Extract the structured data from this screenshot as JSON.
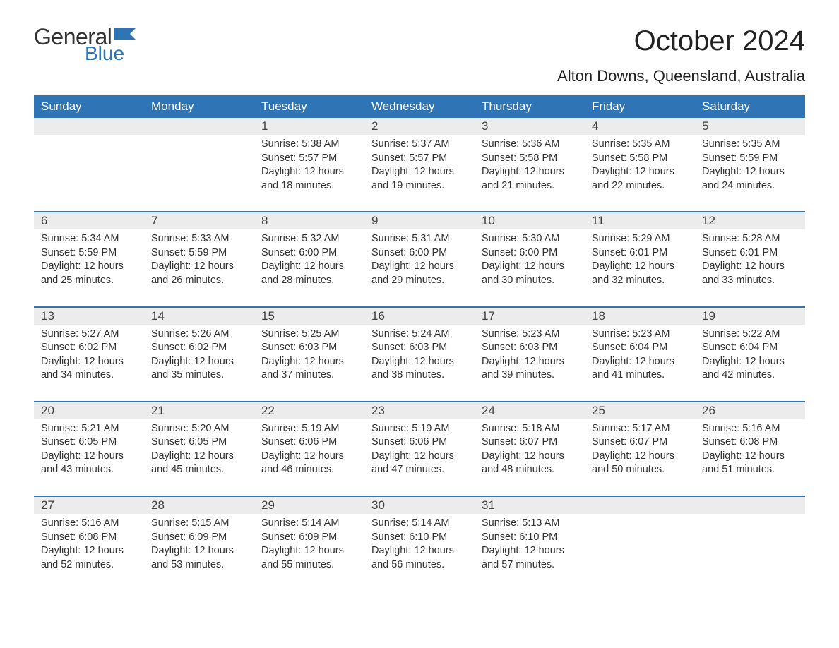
{
  "logo": {
    "word1": "General",
    "word2": "Blue",
    "accent_color": "#2f74b5"
  },
  "title": "October 2024",
  "location": "Alton Downs, Queensland, Australia",
  "colors": {
    "header_bg": "#2f74b5",
    "header_text": "#ffffff",
    "daynum_bg": "#ececec",
    "text": "#333333",
    "week_divider": "#2f74b5",
    "page_bg": "#ffffff"
  },
  "typography": {
    "title_fontsize": 40,
    "location_fontsize": 22,
    "weekday_fontsize": 17,
    "daynum_fontsize": 17,
    "body_fontsize": 14.5
  },
  "weekdays": [
    "Sunday",
    "Monday",
    "Tuesday",
    "Wednesday",
    "Thursday",
    "Friday",
    "Saturday"
  ],
  "weeks": [
    [
      null,
      null,
      {
        "n": "1",
        "sunrise": "Sunrise: 5:38 AM",
        "sunset": "Sunset: 5:57 PM",
        "d1": "Daylight: 12 hours",
        "d2": "and 18 minutes."
      },
      {
        "n": "2",
        "sunrise": "Sunrise: 5:37 AM",
        "sunset": "Sunset: 5:57 PM",
        "d1": "Daylight: 12 hours",
        "d2": "and 19 minutes."
      },
      {
        "n": "3",
        "sunrise": "Sunrise: 5:36 AM",
        "sunset": "Sunset: 5:58 PM",
        "d1": "Daylight: 12 hours",
        "d2": "and 21 minutes."
      },
      {
        "n": "4",
        "sunrise": "Sunrise: 5:35 AM",
        "sunset": "Sunset: 5:58 PM",
        "d1": "Daylight: 12 hours",
        "d2": "and 22 minutes."
      },
      {
        "n": "5",
        "sunrise": "Sunrise: 5:35 AM",
        "sunset": "Sunset: 5:59 PM",
        "d1": "Daylight: 12 hours",
        "d2": "and 24 minutes."
      }
    ],
    [
      {
        "n": "6",
        "sunrise": "Sunrise: 5:34 AM",
        "sunset": "Sunset: 5:59 PM",
        "d1": "Daylight: 12 hours",
        "d2": "and 25 minutes."
      },
      {
        "n": "7",
        "sunrise": "Sunrise: 5:33 AM",
        "sunset": "Sunset: 5:59 PM",
        "d1": "Daylight: 12 hours",
        "d2": "and 26 minutes."
      },
      {
        "n": "8",
        "sunrise": "Sunrise: 5:32 AM",
        "sunset": "Sunset: 6:00 PM",
        "d1": "Daylight: 12 hours",
        "d2": "and 28 minutes."
      },
      {
        "n": "9",
        "sunrise": "Sunrise: 5:31 AM",
        "sunset": "Sunset: 6:00 PM",
        "d1": "Daylight: 12 hours",
        "d2": "and 29 minutes."
      },
      {
        "n": "10",
        "sunrise": "Sunrise: 5:30 AM",
        "sunset": "Sunset: 6:00 PM",
        "d1": "Daylight: 12 hours",
        "d2": "and 30 minutes."
      },
      {
        "n": "11",
        "sunrise": "Sunrise: 5:29 AM",
        "sunset": "Sunset: 6:01 PM",
        "d1": "Daylight: 12 hours",
        "d2": "and 32 minutes."
      },
      {
        "n": "12",
        "sunrise": "Sunrise: 5:28 AM",
        "sunset": "Sunset: 6:01 PM",
        "d1": "Daylight: 12 hours",
        "d2": "and 33 minutes."
      }
    ],
    [
      {
        "n": "13",
        "sunrise": "Sunrise: 5:27 AM",
        "sunset": "Sunset: 6:02 PM",
        "d1": "Daylight: 12 hours",
        "d2": "and 34 minutes."
      },
      {
        "n": "14",
        "sunrise": "Sunrise: 5:26 AM",
        "sunset": "Sunset: 6:02 PM",
        "d1": "Daylight: 12 hours",
        "d2": "and 35 minutes."
      },
      {
        "n": "15",
        "sunrise": "Sunrise: 5:25 AM",
        "sunset": "Sunset: 6:03 PM",
        "d1": "Daylight: 12 hours",
        "d2": "and 37 minutes."
      },
      {
        "n": "16",
        "sunrise": "Sunrise: 5:24 AM",
        "sunset": "Sunset: 6:03 PM",
        "d1": "Daylight: 12 hours",
        "d2": "and 38 minutes."
      },
      {
        "n": "17",
        "sunrise": "Sunrise: 5:23 AM",
        "sunset": "Sunset: 6:03 PM",
        "d1": "Daylight: 12 hours",
        "d2": "and 39 minutes."
      },
      {
        "n": "18",
        "sunrise": "Sunrise: 5:23 AM",
        "sunset": "Sunset: 6:04 PM",
        "d1": "Daylight: 12 hours",
        "d2": "and 41 minutes."
      },
      {
        "n": "19",
        "sunrise": "Sunrise: 5:22 AM",
        "sunset": "Sunset: 6:04 PM",
        "d1": "Daylight: 12 hours",
        "d2": "and 42 minutes."
      }
    ],
    [
      {
        "n": "20",
        "sunrise": "Sunrise: 5:21 AM",
        "sunset": "Sunset: 6:05 PM",
        "d1": "Daylight: 12 hours",
        "d2": "and 43 minutes."
      },
      {
        "n": "21",
        "sunrise": "Sunrise: 5:20 AM",
        "sunset": "Sunset: 6:05 PM",
        "d1": "Daylight: 12 hours",
        "d2": "and 45 minutes."
      },
      {
        "n": "22",
        "sunrise": "Sunrise: 5:19 AM",
        "sunset": "Sunset: 6:06 PM",
        "d1": "Daylight: 12 hours",
        "d2": "and 46 minutes."
      },
      {
        "n": "23",
        "sunrise": "Sunrise: 5:19 AM",
        "sunset": "Sunset: 6:06 PM",
        "d1": "Daylight: 12 hours",
        "d2": "and 47 minutes."
      },
      {
        "n": "24",
        "sunrise": "Sunrise: 5:18 AM",
        "sunset": "Sunset: 6:07 PM",
        "d1": "Daylight: 12 hours",
        "d2": "and 48 minutes."
      },
      {
        "n": "25",
        "sunrise": "Sunrise: 5:17 AM",
        "sunset": "Sunset: 6:07 PM",
        "d1": "Daylight: 12 hours",
        "d2": "and 50 minutes."
      },
      {
        "n": "26",
        "sunrise": "Sunrise: 5:16 AM",
        "sunset": "Sunset: 6:08 PM",
        "d1": "Daylight: 12 hours",
        "d2": "and 51 minutes."
      }
    ],
    [
      {
        "n": "27",
        "sunrise": "Sunrise: 5:16 AM",
        "sunset": "Sunset: 6:08 PM",
        "d1": "Daylight: 12 hours",
        "d2": "and 52 minutes."
      },
      {
        "n": "28",
        "sunrise": "Sunrise: 5:15 AM",
        "sunset": "Sunset: 6:09 PM",
        "d1": "Daylight: 12 hours",
        "d2": "and 53 minutes."
      },
      {
        "n": "29",
        "sunrise": "Sunrise: 5:14 AM",
        "sunset": "Sunset: 6:09 PM",
        "d1": "Daylight: 12 hours",
        "d2": "and 55 minutes."
      },
      {
        "n": "30",
        "sunrise": "Sunrise: 5:14 AM",
        "sunset": "Sunset: 6:10 PM",
        "d1": "Daylight: 12 hours",
        "d2": "and 56 minutes."
      },
      {
        "n": "31",
        "sunrise": "Sunrise: 5:13 AM",
        "sunset": "Sunset: 6:10 PM",
        "d1": "Daylight: 12 hours",
        "d2": "and 57 minutes."
      },
      null,
      null
    ]
  ]
}
